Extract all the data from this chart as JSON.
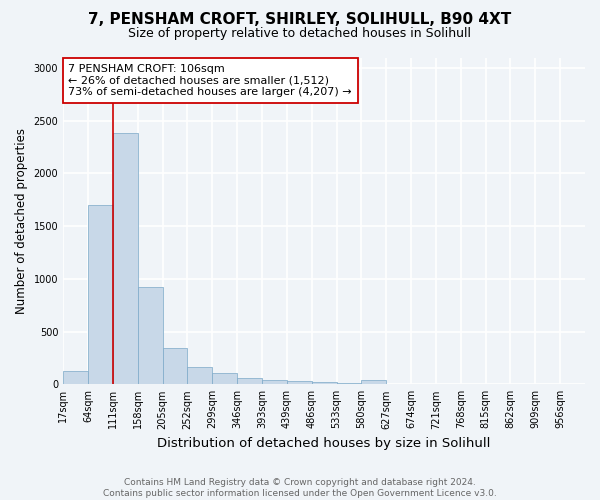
{
  "title": "7, PENSHAM CROFT, SHIRLEY, SOLIHULL, B90 4XT",
  "subtitle": "Size of property relative to detached houses in Solihull",
  "xlabel": "Distribution of detached houses by size in Solihull",
  "ylabel": "Number of detached properties",
  "bar_color": "#c8d8e8",
  "bar_edge_color": "#7ba8c8",
  "annotation_line_color": "#cc0000",
  "annotation_box_line_color": "#cc0000",
  "annotation_text": "7 PENSHAM CROFT: 106sqm\n← 26% of detached houses are smaller (1,512)\n73% of semi-detached houses are larger (4,207) →",
  "categories": [
    "17sqm",
    "64sqm",
    "111sqm",
    "158sqm",
    "205sqm",
    "252sqm",
    "299sqm",
    "346sqm",
    "393sqm",
    "439sqm",
    "486sqm",
    "533sqm",
    "580sqm",
    "627sqm",
    "674sqm",
    "721sqm",
    "768sqm",
    "815sqm",
    "862sqm",
    "909sqm",
    "956sqm"
  ],
  "num_bars": 21,
  "red_line_bar_index": 2,
  "values": [
    130,
    1700,
    2380,
    920,
    340,
    165,
    110,
    60,
    45,
    30,
    25,
    15,
    40,
    0,
    0,
    0,
    0,
    0,
    0,
    0,
    0
  ],
  "ylim": [
    0,
    3100
  ],
  "yticks": [
    0,
    500,
    1000,
    1500,
    2000,
    2500,
    3000
  ],
  "background_color": "#f0f4f8",
  "plot_background_color": "#f0f4f8",
  "grid_color": "#ffffff",
  "footnote": "Contains HM Land Registry data © Crown copyright and database right 2024.\nContains public sector information licensed under the Open Government Licence v3.0.",
  "title_fontsize": 11,
  "subtitle_fontsize": 9,
  "xlabel_fontsize": 9.5,
  "ylabel_fontsize": 8.5,
  "annotation_fontsize": 8,
  "tick_fontsize": 7,
  "footnote_fontsize": 6.5
}
